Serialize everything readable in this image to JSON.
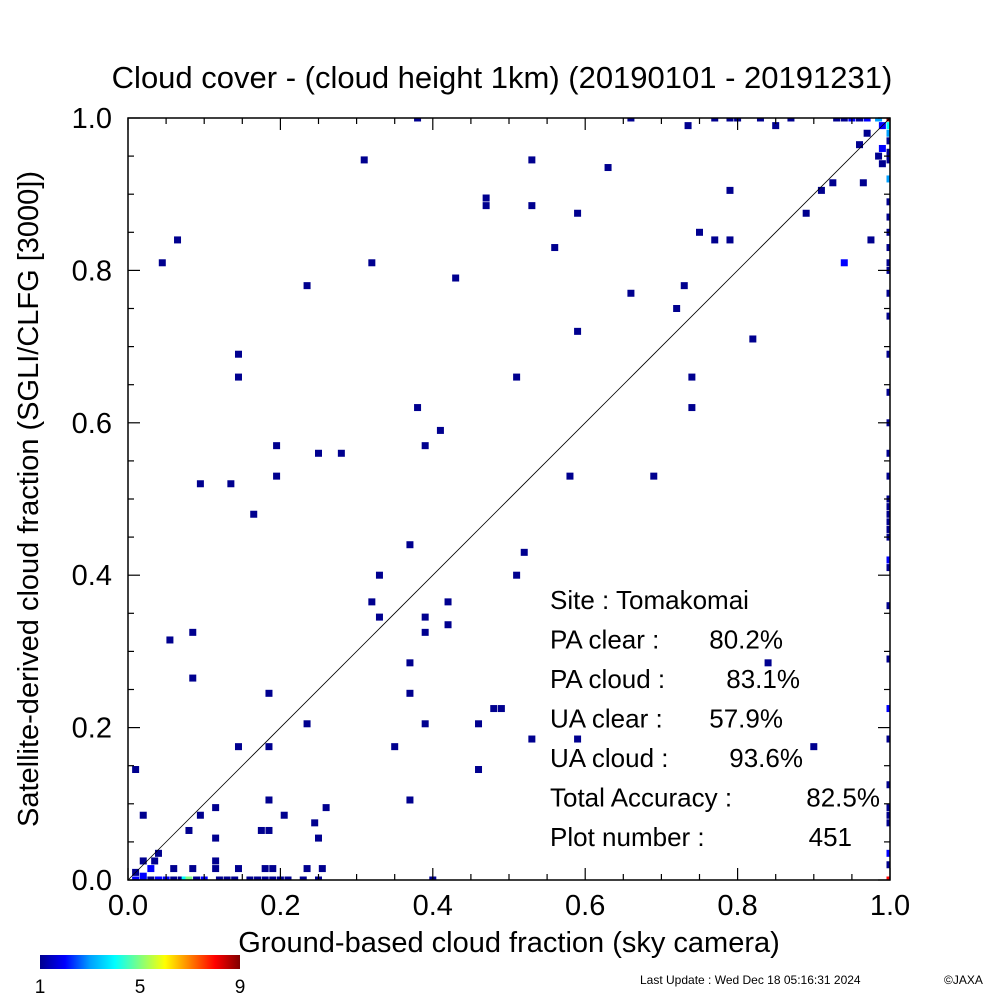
{
  "chart_data": {
    "type": "heatmap",
    "title": "Cloud cover - (cloud height 1km)  (20190101 - 20191231)",
    "xlabel": "Ground-based cloud fraction (sky camera)",
    "ylabel": "Satellite-derived cloud fraction (SGLI/CLFG [3000])",
    "xlim": [
      0.0,
      1.0
    ],
    "ylim": [
      0.0,
      1.0
    ],
    "x_ticks": [
      "0.0",
      "0.2",
      "0.4",
      "0.6",
      "0.8",
      "1.0"
    ],
    "y_ticks": [
      "0.0",
      "0.2",
      "0.4",
      "0.6",
      "0.8",
      "1.0"
    ],
    "grid": false,
    "reference_line": "1:1 diagonal",
    "stats": [
      {
        "label": "Site : Tomakomai",
        "value": ""
      },
      {
        "label": "PA clear :",
        "value": "80.2%"
      },
      {
        "label": "PA cloud :",
        "value": "83.1%"
      },
      {
        "label": "UA clear :",
        "value": "57.9%"
      },
      {
        "label": "UA cloud :",
        "value": "93.6%"
      },
      {
        "label": "Total Accuracy :",
        "value": "82.5%"
      },
      {
        "label": "Plot number :",
        "value": "451"
      }
    ],
    "colorbar": {
      "min": 1,
      "max": 9,
      "tick_labels": [
        "1",
        "5",
        "9"
      ],
      "colors": [
        "#00008f",
        "#0000ff",
        "#00a0ff",
        "#00ffff",
        "#80ff80",
        "#ffff00",
        "#ff8000",
        "#ff0000",
        "#800000"
      ]
    },
    "points": [
      {
        "x": 0.01,
        "y": 0.145,
        "c": 1
      },
      {
        "x": 0.02,
        "y": 0.085,
        "c": 1
      },
      {
        "x": 0.045,
        "y": 0.81,
        "c": 1
      },
      {
        "x": 0.065,
        "y": 0.84,
        "c": 1
      },
      {
        "x": 0.055,
        "y": 0.315,
        "c": 1
      },
      {
        "x": 0.085,
        "y": 0.325,
        "c": 1
      },
      {
        "x": 0.085,
        "y": 0.265,
        "c": 1
      },
      {
        "x": 0.095,
        "y": 0.52,
        "c": 1
      },
      {
        "x": 0.08,
        "y": 0.065,
        "c": 1
      },
      {
        "x": 0.095,
        "y": 0.085,
        "c": 1
      },
      {
        "x": 0.115,
        "y": 0.095,
        "c": 1
      },
      {
        "x": 0.115,
        "y": 0.055,
        "c": 1
      },
      {
        "x": 0.115,
        "y": 0.025,
        "c": 1
      },
      {
        "x": 0.135,
        "y": 0.52,
        "c": 1
      },
      {
        "x": 0.145,
        "y": 0.69,
        "c": 1
      },
      {
        "x": 0.145,
        "y": 0.66,
        "c": 1
      },
      {
        "x": 0.145,
        "y": 0.175,
        "c": 1
      },
      {
        "x": 0.165,
        "y": 0.48,
        "c": 1
      },
      {
        "x": 0.185,
        "y": 0.245,
        "c": 1
      },
      {
        "x": 0.185,
        "y": 0.175,
        "c": 1
      },
      {
        "x": 0.185,
        "y": 0.105,
        "c": 1
      },
      {
        "x": 0.175,
        "y": 0.065,
        "c": 1
      },
      {
        "x": 0.185,
        "y": 0.065,
        "c": 1
      },
      {
        "x": 0.195,
        "y": 0.57,
        "c": 1
      },
      {
        "x": 0.195,
        "y": 0.53,
        "c": 1
      },
      {
        "x": 0.205,
        "y": 0.085,
        "c": 1
      },
      {
        "x": 0.235,
        "y": 0.78,
        "c": 1
      },
      {
        "x": 0.235,
        "y": 0.205,
        "c": 1
      },
      {
        "x": 0.245,
        "y": 0.075,
        "c": 1
      },
      {
        "x": 0.25,
        "y": 0.055,
        "c": 1
      },
      {
        "x": 0.25,
        "y": 0.56,
        "c": 1
      },
      {
        "x": 0.26,
        "y": 0.095,
        "c": 1
      },
      {
        "x": 0.28,
        "y": 0.56,
        "c": 1
      },
      {
        "x": 0.31,
        "y": 0.945,
        "c": 1
      },
      {
        "x": 0.32,
        "y": 0.81,
        "c": 1
      },
      {
        "x": 0.32,
        "y": 0.365,
        "c": 1
      },
      {
        "x": 0.33,
        "y": 0.4,
        "c": 1
      },
      {
        "x": 0.33,
        "y": 0.345,
        "c": 1
      },
      {
        "x": 0.35,
        "y": 0.175,
        "c": 1
      },
      {
        "x": 0.37,
        "y": 0.44,
        "c": 1
      },
      {
        "x": 0.37,
        "y": 0.285,
        "c": 1
      },
      {
        "x": 0.37,
        "y": 0.245,
        "c": 1
      },
      {
        "x": 0.37,
        "y": 0.105,
        "c": 1
      },
      {
        "x": 0.38,
        "y": 1.0,
        "c": 1
      },
      {
        "x": 0.38,
        "y": 0.62,
        "c": 1
      },
      {
        "x": 0.39,
        "y": 0.57,
        "c": 1
      },
      {
        "x": 0.39,
        "y": 0.345,
        "c": 1
      },
      {
        "x": 0.39,
        "y": 0.325,
        "c": 1
      },
      {
        "x": 0.39,
        "y": 0.205,
        "c": 1
      },
      {
        "x": 0.4,
        "y": 0.0,
        "c": 1
      },
      {
        "x": 0.41,
        "y": 0.59,
        "c": 1
      },
      {
        "x": 0.42,
        "y": 0.365,
        "c": 1
      },
      {
        "x": 0.42,
        "y": 0.335,
        "c": 1
      },
      {
        "x": 0.43,
        "y": 0.79,
        "c": 1
      },
      {
        "x": 0.46,
        "y": 0.205,
        "c": 1
      },
      {
        "x": 0.46,
        "y": 0.145,
        "c": 1
      },
      {
        "x": 0.47,
        "y": 0.895,
        "c": 1
      },
      {
        "x": 0.47,
        "y": 0.885,
        "c": 1
      },
      {
        "x": 0.48,
        "y": 0.225,
        "c": 1
      },
      {
        "x": 0.49,
        "y": 0.225,
        "c": 1
      },
      {
        "x": 0.51,
        "y": 0.66,
        "c": 1
      },
      {
        "x": 0.51,
        "y": 0.4,
        "c": 1
      },
      {
        "x": 0.52,
        "y": 0.43,
        "c": 1
      },
      {
        "x": 0.53,
        "y": 0.945,
        "c": 1
      },
      {
        "x": 0.53,
        "y": 0.885,
        "c": 1
      },
      {
        "x": 0.53,
        "y": 0.185,
        "c": 1
      },
      {
        "x": 0.56,
        "y": 0.83,
        "c": 1
      },
      {
        "x": 0.58,
        "y": 0.53,
        "c": 1
      },
      {
        "x": 0.59,
        "y": 0.875,
        "c": 1
      },
      {
        "x": 0.59,
        "y": 0.72,
        "c": 1
      },
      {
        "x": 0.59,
        "y": 0.185,
        "c": 1
      },
      {
        "x": 0.63,
        "y": 0.935,
        "c": 1
      },
      {
        "x": 0.66,
        "y": 1.0,
        "c": 1
      },
      {
        "x": 0.66,
        "y": 0.77,
        "c": 1
      },
      {
        "x": 0.69,
        "y": 0.53,
        "c": 1
      },
      {
        "x": 0.72,
        "y": 0.75,
        "c": 1
      },
      {
        "x": 0.73,
        "y": 0.78,
        "c": 1
      },
      {
        "x": 0.735,
        "y": 0.99,
        "c": 1
      },
      {
        "x": 0.74,
        "y": 0.66,
        "c": 1
      },
      {
        "x": 0.74,
        "y": 0.62,
        "c": 1
      },
      {
        "x": 0.75,
        "y": 0.85,
        "c": 1
      },
      {
        "x": 0.77,
        "y": 1.0,
        "c": 1
      },
      {
        "x": 0.77,
        "y": 0.84,
        "c": 1
      },
      {
        "x": 0.79,
        "y": 1.0,
        "c": 1
      },
      {
        "x": 0.79,
        "y": 0.905,
        "c": 1
      },
      {
        "x": 0.79,
        "y": 0.84,
        "c": 1
      },
      {
        "x": 0.8,
        "y": 1.0,
        "c": 1
      },
      {
        "x": 0.82,
        "y": 0.71,
        "c": 1
      },
      {
        "x": 0.83,
        "y": 1.0,
        "c": 1
      },
      {
        "x": 0.84,
        "y": 0.285,
        "c": 1
      },
      {
        "x": 0.85,
        "y": 0.99,
        "c": 1
      },
      {
        "x": 0.87,
        "y": 1.0,
        "c": 1
      },
      {
        "x": 0.89,
        "y": 0.875,
        "c": 1
      },
      {
        "x": 0.9,
        "y": 0.175,
        "c": 1
      },
      {
        "x": 0.91,
        "y": 0.905,
        "c": 1
      },
      {
        "x": 0.925,
        "y": 0.915,
        "c": 1
      },
      {
        "x": 0.93,
        "y": 1.0,
        "c": 1
      },
      {
        "x": 0.94,
        "y": 0.81,
        "c": 2
      },
      {
        "x": 0.96,
        "y": 0.965,
        "c": 1
      },
      {
        "x": 0.965,
        "y": 0.915,
        "c": 1
      },
      {
        "x": 0.975,
        "y": 0.84,
        "c": 1
      },
      {
        "x": 0.97,
        "y": 0.98,
        "c": 1
      },
      {
        "x": 0.94,
        "y": 1.0,
        "c": 1
      },
      {
        "x": 0.95,
        "y": 1.0,
        "c": 2
      },
      {
        "x": 0.96,
        "y": 1.0,
        "c": 1
      },
      {
        "x": 0.97,
        "y": 1.0,
        "c": 2
      },
      {
        "x": 0.985,
        "y": 1.0,
        "c": 3
      },
      {
        "x": 1.0,
        "y": 1.0,
        "c": 9
      },
      {
        "x": 1.0,
        "y": 0.99,
        "c": 4
      },
      {
        "x": 0.99,
        "y": 0.99,
        "c": 2
      },
      {
        "x": 1.0,
        "y": 0.98,
        "c": 3
      },
      {
        "x": 1.0,
        "y": 0.97,
        "c": 1
      },
      {
        "x": 0.99,
        "y": 0.96,
        "c": 2
      },
      {
        "x": 1.0,
        "y": 0.955,
        "c": 1
      },
      {
        "x": 0.985,
        "y": 0.95,
        "c": 1
      },
      {
        "x": 1.0,
        "y": 0.945,
        "c": 1
      },
      {
        "x": 0.99,
        "y": 0.94,
        "c": 1
      },
      {
        "x": 1.0,
        "y": 0.92,
        "c": 3
      },
      {
        "x": 1.0,
        "y": 0.89,
        "c": 1
      },
      {
        "x": 1.0,
        "y": 0.87,
        "c": 1
      },
      {
        "x": 1.0,
        "y": 0.85,
        "c": 1
      },
      {
        "x": 1.0,
        "y": 0.83,
        "c": 1
      },
      {
        "x": 1.0,
        "y": 0.81,
        "c": 1
      },
      {
        "x": 1.0,
        "y": 0.8,
        "c": 1
      },
      {
        "x": 1.0,
        "y": 0.77,
        "c": 1
      },
      {
        "x": 1.0,
        "y": 0.74,
        "c": 1
      },
      {
        "x": 1.0,
        "y": 0.69,
        "c": 1
      },
      {
        "x": 1.0,
        "y": 0.64,
        "c": 1
      },
      {
        "x": 1.0,
        "y": 0.6,
        "c": 1
      },
      {
        "x": 1.0,
        "y": 0.56,
        "c": 1
      },
      {
        "x": 1.0,
        "y": 0.53,
        "c": 1
      },
      {
        "x": 1.0,
        "y": 0.5,
        "c": 1
      },
      {
        "x": 1.0,
        "y": 0.49,
        "c": 1
      },
      {
        "x": 1.0,
        "y": 0.48,
        "c": 1
      },
      {
        "x": 1.0,
        "y": 0.47,
        "c": 1
      },
      {
        "x": 1.0,
        "y": 0.46,
        "c": 1
      },
      {
        "x": 1.0,
        "y": 0.45,
        "c": 1
      },
      {
        "x": 1.0,
        "y": 0.42,
        "c": 2
      },
      {
        "x": 1.0,
        "y": 0.41,
        "c": 1
      },
      {
        "x": 1.0,
        "y": 0.36,
        "c": 1
      },
      {
        "x": 1.0,
        "y": 0.29,
        "c": 1
      },
      {
        "x": 1.0,
        "y": 0.225,
        "c": 2
      },
      {
        "x": 1.0,
        "y": 0.185,
        "c": 1
      },
      {
        "x": 1.0,
        "y": 0.125,
        "c": 1
      },
      {
        "x": 1.0,
        "y": 0.095,
        "c": 1
      },
      {
        "x": 1.0,
        "y": 0.085,
        "c": 1
      },
      {
        "x": 1.0,
        "y": 0.075,
        "c": 1
      },
      {
        "x": 1.0,
        "y": 0.035,
        "c": 2
      },
      {
        "x": 1.0,
        "y": 0.02,
        "c": 1
      },
      {
        "x": 1.0,
        "y": 0.0,
        "c": 8
      },
      {
        "x": 0.01,
        "y": 0.0,
        "c": 2
      },
      {
        "x": 0.02,
        "y": 0.0,
        "c": 3
      },
      {
        "x": 0.03,
        "y": 0.0,
        "c": 1
      },
      {
        "x": 0.04,
        "y": 0.0,
        "c": 2
      },
      {
        "x": 0.05,
        "y": 0.0,
        "c": 2
      },
      {
        "x": 0.06,
        "y": 0.0,
        "c": 1
      },
      {
        "x": 0.07,
        "y": 0.0,
        "c": 1
      },
      {
        "x": 0.075,
        "y": 0.0,
        "c": 4
      },
      {
        "x": 0.08,
        "y": 0.0,
        "c": 5
      },
      {
        "x": 0.09,
        "y": 0.0,
        "c": 1
      },
      {
        "x": 0.1,
        "y": 0.0,
        "c": 2
      },
      {
        "x": 0.12,
        "y": 0.0,
        "c": 1
      },
      {
        "x": 0.13,
        "y": 0.0,
        "c": 1
      },
      {
        "x": 0.14,
        "y": 0.0,
        "c": 1
      },
      {
        "x": 0.16,
        "y": 0.0,
        "c": 1
      },
      {
        "x": 0.17,
        "y": 0.0,
        "c": 1
      },
      {
        "x": 0.18,
        "y": 0.0,
        "c": 1
      },
      {
        "x": 0.19,
        "y": 0.0,
        "c": 1
      },
      {
        "x": 0.2,
        "y": 0.0,
        "c": 1
      },
      {
        "x": 0.21,
        "y": 0.0,
        "c": 1
      },
      {
        "x": 0.23,
        "y": 0.0,
        "c": 1
      },
      {
        "x": 0.25,
        "y": 0.0,
        "c": 1
      },
      {
        "x": 0.02,
        "y": 0.025,
        "c": 1
      },
      {
        "x": 0.03,
        "y": 0.015,
        "c": 2
      },
      {
        "x": 0.035,
        "y": 0.025,
        "c": 1
      },
      {
        "x": 0.04,
        "y": 0.035,
        "c": 1
      },
      {
        "x": 0.02,
        "y": 0.005,
        "c": 2
      },
      {
        "x": 0.01,
        "y": 0.01,
        "c": 1
      },
      {
        "x": 0.085,
        "y": 0.015,
        "c": 1
      },
      {
        "x": 0.115,
        "y": 0.015,
        "c": 1
      },
      {
        "x": 0.145,
        "y": 0.015,
        "c": 1
      },
      {
        "x": 0.18,
        "y": 0.015,
        "c": 1
      },
      {
        "x": 0.19,
        "y": 0.015,
        "c": 1
      },
      {
        "x": 0.235,
        "y": 0.015,
        "c": 1
      },
      {
        "x": 0.255,
        "y": 0.015,
        "c": 1
      },
      {
        "x": 0.06,
        "y": 0.015,
        "c": 1
      }
    ]
  },
  "footer": {
    "last_update": "Last Update : Wed Dec 18 05:16:31 2024",
    "copyright": "©JAXA"
  }
}
